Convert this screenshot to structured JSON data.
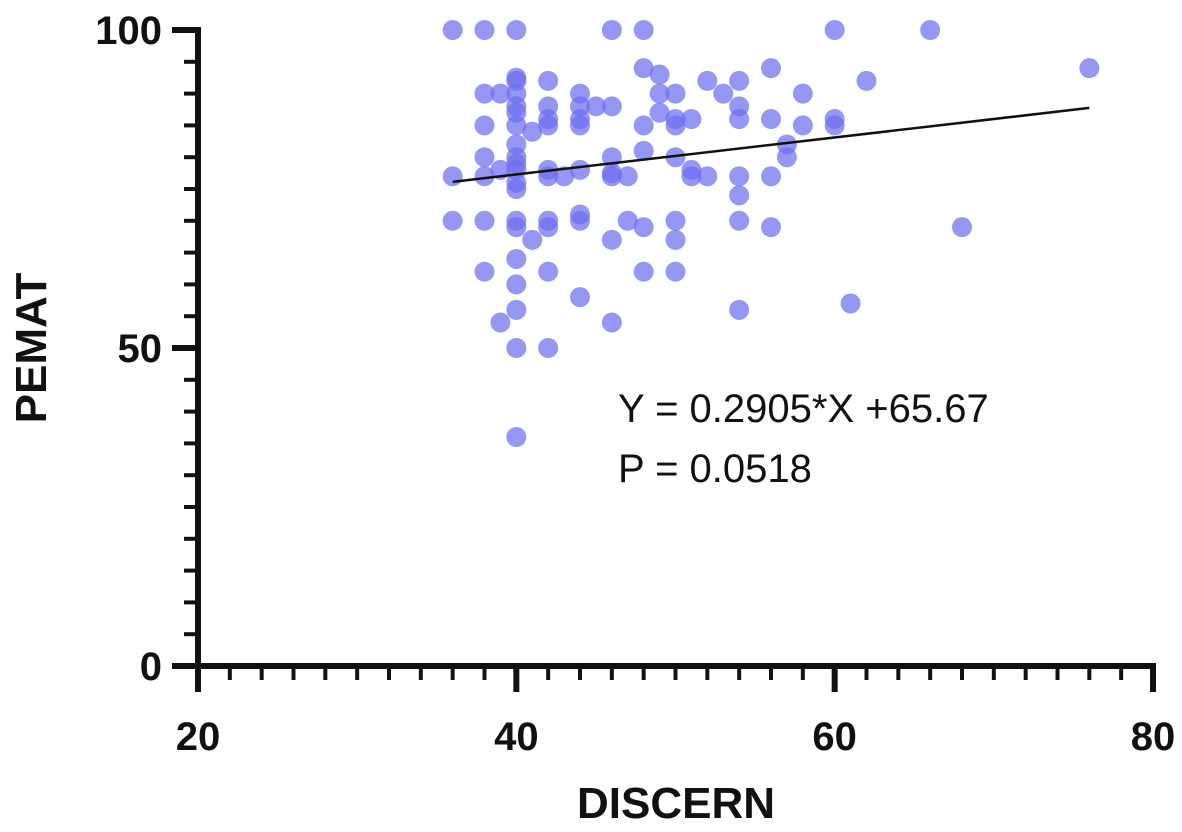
{
  "chart_data": {
    "type": "scatter",
    "title": "",
    "xlabel": "DISCERN",
    "ylabel": "PEMAT",
    "xlim": [
      20,
      80
    ],
    "ylim": [
      0,
      100
    ],
    "x_ticks": [
      20,
      40,
      60,
      80
    ],
    "y_ticks": [
      0,
      50,
      100
    ],
    "x_minor_step": 2,
    "y_minor_step": 5,
    "grid": false,
    "legend": "none",
    "point_color": "#6E6EF0",
    "line_color": "#111111",
    "series": [
      {
        "points": [
          [
            36,
            100
          ],
          [
            38,
            100
          ],
          [
            40,
            100
          ],
          [
            46,
            100
          ],
          [
            48,
            100
          ],
          [
            60,
            100
          ],
          [
            66,
            100
          ],
          [
            40,
            92
          ],
          [
            40,
            92.5
          ],
          [
            42,
            92
          ],
          [
            48,
            94
          ],
          [
            49,
            93
          ],
          [
            52,
            92
          ],
          [
            53,
            90
          ],
          [
            54,
            92
          ],
          [
            56,
            94
          ],
          [
            62,
            92
          ],
          [
            76,
            94
          ],
          [
            38,
            90
          ],
          [
            39,
            90
          ],
          [
            40,
            90
          ],
          [
            40,
            88
          ],
          [
            40,
            87
          ],
          [
            40,
            85
          ],
          [
            41,
            84
          ],
          [
            42,
            88
          ],
          [
            42,
            86
          ],
          [
            42,
            85
          ],
          [
            44,
            90
          ],
          [
            44,
            88
          ],
          [
            44,
            86
          ],
          [
            44,
            85
          ],
          [
            45,
            88
          ],
          [
            46,
            88
          ],
          [
            48,
            85
          ],
          [
            49,
            90
          ],
          [
            49,
            87
          ],
          [
            50,
            90
          ],
          [
            50,
            86
          ],
          [
            50,
            85
          ],
          [
            51,
            86
          ],
          [
            54,
            88
          ],
          [
            54,
            86
          ],
          [
            56,
            86
          ],
          [
            57,
            82
          ],
          [
            58,
            90
          ],
          [
            58,
            85
          ],
          [
            60,
            86
          ],
          [
            60,
            85
          ],
          [
            38,
            85
          ],
          [
            38,
            80
          ],
          [
            38,
            77
          ],
          [
            39,
            78
          ],
          [
            40,
            82
          ],
          [
            40,
            80
          ],
          [
            40,
            79
          ],
          [
            40,
            78
          ],
          [
            40,
            76
          ],
          [
            40,
            75
          ],
          [
            42,
            78
          ],
          [
            42,
            77
          ],
          [
            43,
            77
          ],
          [
            44,
            78
          ],
          [
            46,
            80
          ],
          [
            46,
            77
          ],
          [
            46,
            77.5
          ],
          [
            47,
            77
          ],
          [
            48,
            81
          ],
          [
            50,
            80
          ],
          [
            51,
            78
          ],
          [
            51,
            77
          ],
          [
            52,
            77
          ],
          [
            54,
            77
          ],
          [
            54,
            74
          ],
          [
            56,
            77
          ],
          [
            57,
            80
          ],
          [
            36,
            77
          ],
          [
            36,
            70
          ],
          [
            38,
            70
          ],
          [
            40,
            70
          ],
          [
            40,
            69
          ],
          [
            40,
            64
          ],
          [
            40,
            60
          ],
          [
            40,
            56
          ],
          [
            40,
            50
          ],
          [
            40,
            36
          ],
          [
            41,
            67
          ],
          [
            42,
            70
          ],
          [
            42,
            69
          ],
          [
            42,
            62
          ],
          [
            42,
            50
          ],
          [
            44,
            71
          ],
          [
            44,
            70
          ],
          [
            44,
            58
          ],
          [
            46,
            67
          ],
          [
            46,
            54
          ],
          [
            47,
            70
          ],
          [
            48,
            69
          ],
          [
            48,
            62
          ],
          [
            50,
            70
          ],
          [
            50,
            67
          ],
          [
            50,
            62
          ],
          [
            54,
            70
          ],
          [
            54,
            56
          ],
          [
            56,
            69
          ],
          [
            61,
            57
          ],
          [
            68,
            69
          ],
          [
            38,
            62
          ],
          [
            39,
            54
          ]
        ]
      }
    ],
    "trendline": {
      "slope": 0.2905,
      "intercept": 65.67,
      "x_start": 36,
      "x_end": 76
    },
    "annotations": [
      "Y = 0.2905*X +65.67",
      "P = 0.0518"
    ]
  }
}
